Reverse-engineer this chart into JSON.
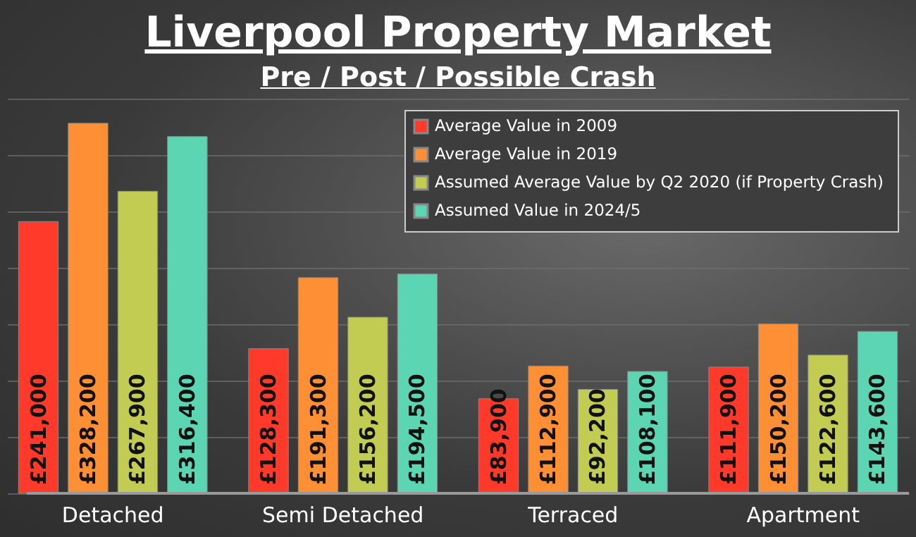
{
  "chart_data": {
    "type": "bar",
    "title": "Liverpool Property Market",
    "subtitle": "Pre / Post / Possible Crash",
    "categories": [
      "Detached",
      "Semi Detached",
      "Terraced",
      "Apartment"
    ],
    "series": [
      {
        "name": "Average Value in 2009",
        "color": "#ff3a2a",
        "values": [
          241000,
          128300,
          83900,
          111900
        ],
        "value_labels": [
          "£241,000",
          "£128,300",
          "£83,900",
          "£111,900"
        ]
      },
      {
        "name": "Average Value in 2019",
        "color": "#ff8f35",
        "values": [
          328200,
          191300,
          112900,
          150200
        ],
        "value_labels": [
          "£328,200",
          "£191,300",
          "£112,900",
          "£150,200"
        ]
      },
      {
        "name": "Assumed Average Value by Q2 2020  (if Property Crash)",
        "color": "#c3cc52",
        "values": [
          267900,
          156200,
          92200,
          122600
        ],
        "value_labels": [
          "£267,900",
          "£156,200",
          "£92,200",
          "£122,600"
        ]
      },
      {
        "name": "Assumed Value in 2024/5",
        "color": "#5cd6b2",
        "values": [
          316400,
          194500,
          108100,
          143600
        ],
        "value_labels": [
          "£316,400",
          "£194,500",
          "£108,100",
          "£143,600"
        ]
      }
    ],
    "ylim": [
      0,
      350000
    ],
    "yticks": [
      {
        "value": 0,
        "label": null
      },
      {
        "value": 50000,
        "label": null
      },
      {
        "value": 100000,
        "label": null
      },
      {
        "value": 150000,
        "label": null
      },
      {
        "value": 200000,
        "label": null
      },
      {
        "value": 250000,
        "label": null
      },
      {
        "value": 300000,
        "label": null
      },
      {
        "value": 350000,
        "label": null
      }
    ],
    "tick_labels": "x",
    "grid": "y",
    "legend": "top right"
  }
}
